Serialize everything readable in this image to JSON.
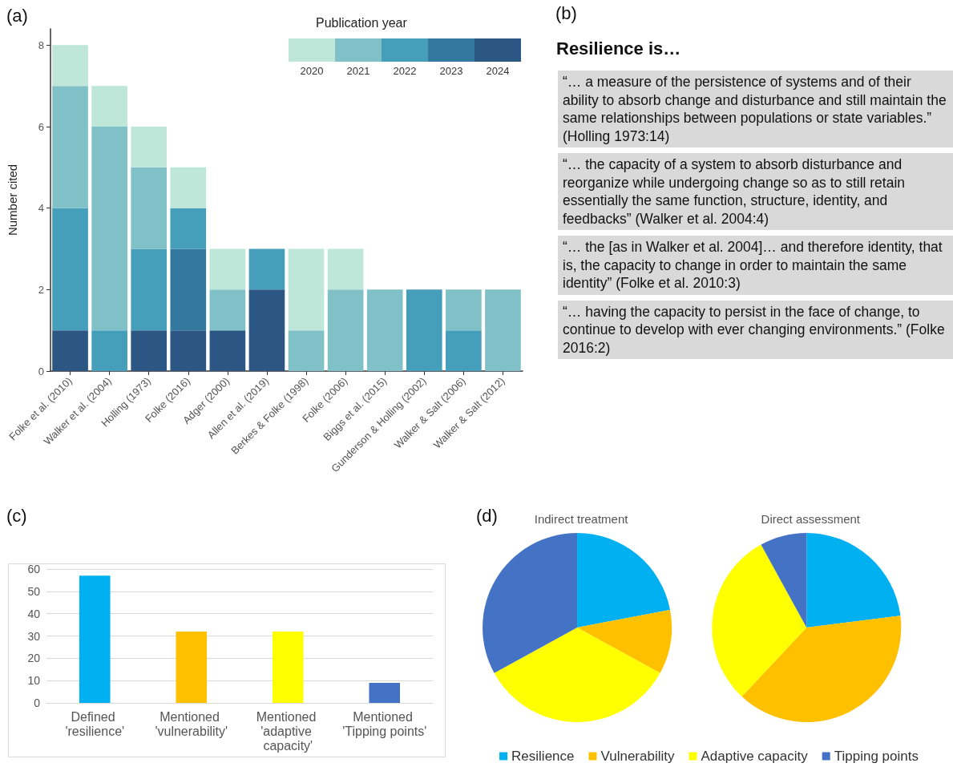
{
  "chart_data": [
    {
      "type": "bar",
      "stacked": true,
      "ylabel": "Number cited",
      "legend_title": "Publication year",
      "legend": "top right",
      "grid": false,
      "annotations": [
        "(a)"
      ],
      "categories": [
        "Folke et al. (2010)",
        "Walker et al. (2004)",
        "Holling (1973)",
        "Folke (2016)",
        "Adger (2000)",
        "Allen et al. (2019)",
        "Berkes & Folke (1998)",
        "Folke (2006)",
        "Biggs et al. (2015)",
        "Gunderson & Holling (2002)",
        "Walker & Salt (2006)",
        "Walker & Salt (2012)"
      ],
      "ylim": [
        0,
        8.4
      ],
      "yticks": [
        0,
        2,
        4,
        6,
        8
      ],
      "series": [
        {
          "name": "2024",
          "color": "#2c5684",
          "values": [
            1,
            null,
            1,
            1,
            1,
            2,
            null,
            null,
            null,
            null,
            null,
            null
          ]
        },
        {
          "name": "2023",
          "color": "#33789e",
          "values": [
            null,
            null,
            null,
            2,
            null,
            null,
            null,
            null,
            null,
            null,
            null,
            null
          ]
        },
        {
          "name": "2022",
          "color": "#459fbb",
          "values": [
            3,
            1,
            2,
            1,
            null,
            1,
            null,
            null,
            null,
            2,
            1,
            null
          ]
        },
        {
          "name": "2021",
          "color": "#80c1c8",
          "values": [
            3,
            5,
            2,
            null,
            1,
            null,
            1,
            2,
            2,
            null,
            1,
            2
          ]
        },
        {
          "name": "2020",
          "color": "#bee6d9",
          "values": [
            1,
            1,
            1,
            1,
            1,
            null,
            2,
            1,
            null,
            null,
            null,
            null
          ]
        }
      ]
    },
    {
      "type": "other",
      "title": "Resilience is…",
      "annotations": [
        "(b)",
        "“… a measure of the persistence of systems and of their ability to absorb change and disturbance and still maintain the same relationships between populations or state variables.” (Holling 1973:14)",
        "“… the capacity of a system to absorb disturbance and reorganize while undergoing change so as to still retain essentially the same function, structure, identity, and feedbacks” (Walker et al. 2004:4)",
        "“… the [as in Walker et al. 2004]… and therefore identity, that is, the capacity to change in order to maintain the same identity” (Folke et al. 2010:3)",
        "“… having the capacity to persist in the face of change, to continue to develop with ever changing environments.” (Folke 2016:2)"
      ]
    },
    {
      "type": "bar",
      "annotations": [
        "(c)"
      ],
      "categories": [
        "Defined 'resilience'",
        "Mentioned 'vulnerability'",
        "Mentioned 'adaptive capacity'",
        "Mentioned 'Tipping points'"
      ],
      "values": [
        57,
        32,
        32,
        9
      ],
      "colors": [
        "#00b0f0",
        "#ffc000",
        "#ffff00",
        "#4472c4"
      ],
      "ylim": [
        0,
        60
      ],
      "yticks": [
        0,
        10,
        20,
        30,
        40,
        50,
        60
      ],
      "grid": "y"
    },
    {
      "type": "pie",
      "annotations": [
        "(d)"
      ],
      "legend": "bottom",
      "categories": [
        "Resilience",
        "Vulnerability",
        "Adaptive capacity",
        "Tipping points"
      ],
      "colors": [
        "#00b0f0",
        "#ffc000",
        "#ffff00",
        "#4472c4"
      ],
      "series": [
        {
          "name": "Indirect treatment",
          "values": [
            22,
            11,
            34,
            33
          ]
        },
        {
          "name": "Direct assessment",
          "values": [
            23,
            39,
            30,
            8
          ]
        }
      ]
    }
  ]
}
